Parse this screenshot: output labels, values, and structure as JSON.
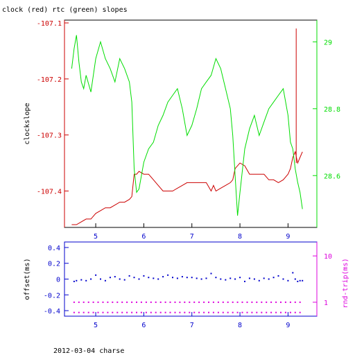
{
  "title": "clock (red) rtc (green) slopes",
  "footer": "2012-03-04 charse",
  "colors": {
    "red": "#cc0000",
    "green": "#00dd00",
    "blue": "#0000cc",
    "magenta": "#dd00dd",
    "black": "#000000"
  },
  "chart_data": [
    {
      "type": "line",
      "title": "clock (red) rtc (green) slopes",
      "ylabel": "clockslope",
      "xlim": [
        4.35,
        9.6
      ],
      "ylim": [
        -107.465,
        -107.095
      ],
      "y2lim": [
        28.445,
        29.065
      ],
      "x_ticks": [
        "5",
        "6",
        "7",
        "8",
        "9"
      ],
      "y_ticks": [
        "-107.1",
        "-107.2",
        "-107.3",
        "-107.4"
      ],
      "y2_ticks": [
        "29",
        "28.8",
        "28.6"
      ],
      "series": [
        {
          "name": "clock (red)",
          "axis": "left",
          "color": "#cc0000",
          "x": [
            4.5,
            4.6,
            4.7,
            4.8,
            4.9,
            5.0,
            5.1,
            5.2,
            5.3,
            5.4,
            5.5,
            5.6,
            5.7,
            5.75,
            5.8,
            5.85,
            5.9,
            6.0,
            6.1,
            6.2,
            6.3,
            6.4,
            6.5,
            6.6,
            6.7,
            6.8,
            6.9,
            7.0,
            7.1,
            7.2,
            7.3,
            7.4,
            7.45,
            7.5,
            7.6,
            7.7,
            7.8,
            7.85,
            7.9,
            8.0,
            8.1,
            8.2,
            8.3,
            8.4,
            8.5,
            8.6,
            8.7,
            8.8,
            8.9,
            9.0,
            9.05,
            9.1,
            9.15,
            9.2,
            9.25,
            9.3
          ],
          "y": [
            -107.46,
            -107.46,
            -107.455,
            -107.45,
            -107.45,
            -107.44,
            -107.435,
            -107.43,
            -107.43,
            -107.425,
            -107.42,
            -107.42,
            -107.415,
            -107.41,
            -107.37,
            -107.37,
            -107.365,
            -107.37,
            -107.37,
            -107.38,
            -107.39,
            -107.4,
            -107.4,
            -107.4,
            -107.395,
            -107.39,
            -107.385,
            -107.385,
            -107.385,
            -107.385,
            -107.385,
            -107.4,
            -107.39,
            -107.4,
            -107.395,
            -107.39,
            -107.385,
            -107.38,
            -107.36,
            -107.35,
            -107.355,
            -107.37,
            -107.37,
            -107.37,
            -107.37,
            -107.38,
            -107.38,
            -107.385,
            -107.38,
            -107.37,
            -107.36,
            -107.34,
            -107.33,
            -107.35,
            -107.34,
            -107.33
          ]
        },
        {
          "name": "rtc (green)",
          "axis": "right",
          "color": "#00dd00",
          "x": [
            4.5,
            4.55,
            4.6,
            4.65,
            4.7,
            4.75,
            4.8,
            4.9,
            5.0,
            5.1,
            5.2,
            5.3,
            5.4,
            5.5,
            5.6,
            5.7,
            5.75,
            5.8,
            5.85,
            5.9,
            6.0,
            6.1,
            6.2,
            6.3,
            6.4,
            6.5,
            6.6,
            6.7,
            6.8,
            6.9,
            7.0,
            7.1,
            7.2,
            7.3,
            7.4,
            7.5,
            7.6,
            7.7,
            7.8,
            7.85,
            7.9,
            7.95,
            8.0,
            8.1,
            8.2,
            8.3,
            8.4,
            8.5,
            8.6,
            8.7,
            8.8,
            8.9,
            9.0,
            9.05,
            9.1,
            9.15,
            9.2,
            9.25,
            9.3
          ],
          "y": [
            28.92,
            28.98,
            29.02,
            28.94,
            28.88,
            28.86,
            28.9,
            28.85,
            28.95,
            29.0,
            28.95,
            28.92,
            28.88,
            28.95,
            28.92,
            28.88,
            28.82,
            28.62,
            28.55,
            28.56,
            28.64,
            28.68,
            28.7,
            28.75,
            28.78,
            28.82,
            28.84,
            28.86,
            28.8,
            28.72,
            28.75,
            28.8,
            28.86,
            28.88,
            28.9,
            28.95,
            28.92,
            28.86,
            28.8,
            28.72,
            28.6,
            28.48,
            28.55,
            28.68,
            28.74,
            28.78,
            28.72,
            28.76,
            28.8,
            28.82,
            28.84,
            28.86,
            28.78,
            28.7,
            28.68,
            28.62,
            28.58,
            28.55,
            28.5
          ]
        }
      ]
    },
    {
      "type": "scatter",
      "ylabel": "offset(ms)",
      "y2label": "rnd-trip(ms)",
      "xlim": [
        4.35,
        9.6
      ],
      "ylim": [
        -0.47,
        0.47
      ],
      "y2lim": [
        0.5,
        20
      ],
      "y2_log": true,
      "x_ticks": [
        "5",
        "6",
        "7",
        "8",
        "9"
      ],
      "y_ticks": [
        "0.4",
        "0.2",
        "0",
        "-0.2",
        "-0.4"
      ],
      "y2_ticks": [
        "10",
        "1"
      ],
      "series": [
        {
          "name": "offset",
          "axis": "left",
          "color": "#0000cc",
          "x": [
            4.55,
            4.6,
            4.7,
            4.8,
            4.9,
            5.0,
            5.1,
            5.2,
            5.3,
            5.4,
            5.5,
            5.6,
            5.7,
            5.8,
            5.9,
            6.0,
            6.1,
            6.2,
            6.3,
            6.4,
            6.5,
            6.6,
            6.7,
            6.8,
            6.9,
            7.0,
            7.1,
            7.2,
            7.3,
            7.4,
            7.5,
            7.6,
            7.7,
            7.8,
            7.9,
            8.0,
            8.1,
            8.2,
            8.3,
            8.4,
            8.5,
            8.6,
            8.7,
            8.8,
            8.9,
            9.0,
            9.1,
            9.15,
            9.2,
            9.25,
            9.3
          ],
          "y": [
            -0.03,
            -0.02,
            -0.01,
            -0.02,
            0.0,
            0.05,
            0.0,
            -0.02,
            0.02,
            0.03,
            0.0,
            -0.01,
            0.04,
            0.02,
            0.0,
            0.04,
            0.02,
            0.01,
            0.0,
            0.03,
            0.05,
            0.02,
            0.01,
            0.03,
            0.02,
            0.02,
            0.01,
            0.0,
            0.01,
            0.07,
            0.02,
            0.0,
            -0.01,
            0.01,
            0.0,
            0.02,
            -0.03,
            0.01,
            0.0,
            -0.02,
            0.01,
            0.0,
            0.02,
            0.04,
            0.0,
            -0.02,
            0.08,
            0.0,
            -0.03,
            -0.02,
            -0.02
          ]
        },
        {
          "name": "rnd-trip",
          "axis": "right",
          "color": "#dd00dd",
          "x": [
            4.55,
            4.65,
            4.75,
            4.85,
            4.95,
            5.05,
            5.15,
            5.25,
            5.35,
            5.45,
            5.55,
            5.65,
            5.75,
            5.85,
            5.95,
            6.05,
            6.15,
            6.25,
            6.35,
            6.45,
            6.55,
            6.65,
            6.75,
            6.85,
            6.95,
            7.05,
            7.15,
            7.25,
            7.35,
            7.45,
            7.55,
            7.65,
            7.75,
            7.85,
            7.95,
            8.05,
            8.15,
            8.25,
            8.35,
            8.45,
            8.55,
            8.65,
            8.75,
            8.85,
            8.95,
            9.05,
            9.15,
            9.25
          ],
          "y": [
            1.0,
            1.0,
            1.0,
            1.0,
            1.0,
            1.0,
            1.0,
            1.0,
            1.0,
            1.0,
            1.0,
            1.0,
            1.0,
            1.0,
            1.0,
            1.0,
            1.0,
            1.0,
            1.0,
            1.0,
            1.0,
            1.0,
            1.0,
            1.0,
            1.0,
            1.0,
            1.0,
            1.0,
            1.0,
            1.0,
            1.0,
            1.0,
            1.0,
            1.0,
            1.0,
            1.0,
            1.0,
            1.0,
            1.0,
            1.0,
            1.0,
            1.0,
            1.0,
            1.0,
            1.0,
            1.0,
            1.0,
            1.0
          ]
        },
        {
          "name": "rnd-trip-low",
          "axis": "right",
          "color": "#dd00dd",
          "x": [
            4.55,
            4.65,
            4.75,
            4.85,
            4.95,
            5.05,
            5.15,
            5.25,
            5.35,
            5.45,
            5.55,
            5.65,
            5.75,
            5.85,
            5.95,
            6.05,
            6.15,
            6.25,
            6.35,
            6.45,
            6.55,
            6.65,
            6.75,
            6.85,
            6.95,
            7.05,
            7.15,
            7.25,
            7.35,
            7.45,
            7.55,
            7.65,
            7.75,
            7.85,
            7.95,
            8.05,
            8.15,
            8.25,
            8.35,
            8.45,
            8.55,
            8.65,
            8.75,
            8.85,
            8.95,
            9.05,
            9.15,
            9.25
          ],
          "y": [
            0.6,
            0.6,
            0.6,
            0.6,
            0.6,
            0.6,
            0.6,
            0.6,
            0.6,
            0.6,
            0.6,
            0.6,
            0.6,
            0.6,
            0.6,
            0.6,
            0.6,
            0.6,
            0.6,
            0.6,
            0.6,
            0.6,
            0.6,
            0.6,
            0.6,
            0.6,
            0.6,
            0.6,
            0.6,
            0.6,
            0.6,
            0.6,
            0.6,
            0.6,
            0.6,
            0.6,
            0.6,
            0.6,
            0.6,
            0.6,
            0.6,
            0.6,
            0.6,
            0.6,
            0.6,
            0.6,
            0.6,
            0.6
          ]
        }
      ]
    }
  ]
}
